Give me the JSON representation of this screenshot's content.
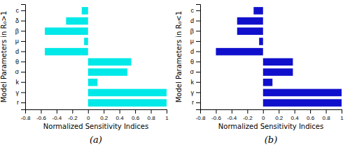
{
  "chart_data": [
    {
      "type": "bar",
      "orientation": "horizontal",
      "ylabel": "Model Parameters in R₀>1",
      "xlabel": "Normalized Sensitivity Indices",
      "annotations": [
        "(a)"
      ],
      "color": "#00E8E8",
      "categories": [
        "c",
        "δ",
        "β",
        "μ",
        "d",
        "θ",
        "σ",
        "k",
        "γ",
        "r"
      ],
      "values": [
        -0.08,
        -0.28,
        -0.55,
        -0.05,
        -0.55,
        0.55,
        0.5,
        0.12,
        1.0,
        1.0
      ],
      "xlim": [
        -0.8,
        1.0
      ],
      "xticks": [
        -0.8,
        -0.6,
        -0.4,
        -0.2,
        0,
        0.2,
        0.4,
        0.6,
        0.8,
        1
      ],
      "grid": false
    },
    {
      "type": "bar",
      "orientation": "horizontal",
      "ylabel": "Model Parameters in R₀<1",
      "xlabel": "Normalized Sensitivity Indices",
      "annotations": [
        "(b)"
      ],
      "color": "#1010CC",
      "categories": [
        "c",
        "d",
        "β",
        "μ",
        "d",
        "θ",
        "σ",
        "k",
        "γ",
        "r"
      ],
      "values": [
        -0.12,
        -0.33,
        -0.33,
        -0.05,
        -0.6,
        0.38,
        0.38,
        0.12,
        1.0,
        1.0
      ],
      "xlim": [
        -0.8,
        1.0
      ],
      "xticks": [
        -0.8,
        -0.6,
        -0.4,
        -0.2,
        0,
        0.2,
        0.4,
        0.6,
        0.8,
        1
      ],
      "grid": false
    }
  ]
}
